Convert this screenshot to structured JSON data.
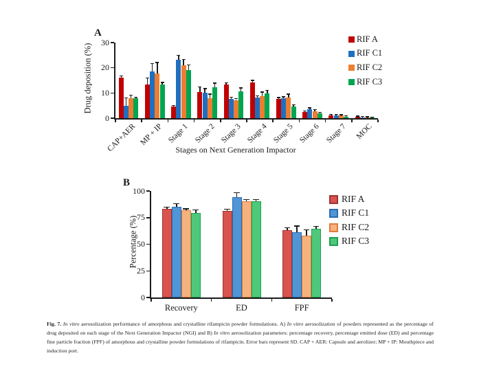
{
  "page": {
    "background": "#ffffff",
    "figure_id": "Fig. 7"
  },
  "chart_data": [
    {
      "id": "A",
      "type": "bar",
      "panel_label": "A",
      "title": "",
      "xlabel": "Stages on Next Generation Impactor",
      "ylabel": "Drug deposition (%)",
      "ylim": [
        0,
        30
      ],
      "yticks": [
        0,
        10,
        20,
        30
      ],
      "grid": false,
      "legend_position": "top-right",
      "error_bars": "SD, upward with caps",
      "categories": [
        "CAP+AER",
        "MP + IP",
        "Stage 1",
        "Stage 2",
        "Stage 3",
        "Stage 4",
        "Stage 5",
        "Stage 6",
        "Stage 7",
        "MOC"
      ],
      "series": [
        {
          "name": "RIF A",
          "fill": "#C00000",
          "stroke": "#C00000",
          "values": [
            16.0,
            13.4,
            4.6,
            10.4,
            13.4,
            14.3,
            7.7,
            2.4,
            1.2,
            0.5
          ],
          "errors": [
            0.6,
            2.3,
            0.3,
            1.8,
            0.4,
            0.5,
            0.3,
            0.2,
            0.15,
            0.1
          ]
        },
        {
          "name": "RIF C1",
          "fill": "#1F6FC0",
          "stroke": "#1F6FC0",
          "values": [
            4.8,
            18.6,
            23.3,
            10.1,
            7.7,
            8.3,
            7.9,
            3.5,
            1.2,
            0.4
          ],
          "errors": [
            3.0,
            2.9,
            1.5,
            1.4,
            0.5,
            0.4,
            0.4,
            0.4,
            0.15,
            0.1
          ]
        },
        {
          "name": "RIF C2",
          "fill": "#ED7D31",
          "stroke": "#ED7D31",
          "values": [
            7.9,
            17.8,
            21.1,
            7.8,
            7.2,
            8.8,
            8.2,
            2.8,
            1.0,
            0.3
          ],
          "errors": [
            1.1,
            4.1,
            2.1,
            1.6,
            0.3,
            1.4,
            1.2,
            0.5,
            0.15,
            0.1
          ]
        },
        {
          "name": "RIF C3",
          "fill": "#00A550",
          "stroke": "#00A550",
          "values": [
            7.8,
            13.3,
            19.0,
            12.2,
            10.6,
            9.8,
            4.7,
            2.0,
            0.6,
            0.25
          ],
          "errors": [
            0.3,
            0.7,
            2.0,
            1.5,
            1.2,
            1.0,
            0.4,
            0.2,
            0.1,
            0.05
          ]
        }
      ]
    },
    {
      "id": "B",
      "type": "bar",
      "panel_label": "B",
      "title": "",
      "xlabel": "",
      "ylabel": "Percentage (%)",
      "ylim": [
        0,
        100
      ],
      "yticks": [
        0,
        25,
        50,
        75,
        100
      ],
      "grid": false,
      "legend_position": "right",
      "error_bars": "SD, upward with caps",
      "categories": [
        "Recovery",
        "ED",
        "FPF"
      ],
      "series": [
        {
          "name": "RIF A",
          "fill": "#D9534F",
          "stroke": "#9E3432",
          "values": [
            83.3,
            81.4,
            63.0
          ],
          "errors": [
            1.0,
            1.2,
            2.0
          ]
        },
        {
          "name": "RIF C1",
          "fill": "#5095D5",
          "stroke": "#2A6DB0",
          "values": [
            85.0,
            94.5,
            61.3
          ],
          "errors": [
            2.8,
            3.3,
            5.3
          ]
        },
        {
          "name": "RIF C2",
          "fill": "#F5B27F",
          "stroke": "#E07B39",
          "values": [
            81.8,
            90.3,
            58.0
          ],
          "errors": [
            1.0,
            1.3,
            5.0
          ]
        },
        {
          "name": "RIF C3",
          "fill": "#4EC97B",
          "stroke": "#1E9E50",
          "values": [
            79.5,
            90.6,
            64.3
          ],
          "errors": [
            2.5,
            0.8,
            2.2
          ]
        }
      ]
    }
  ],
  "caption": {
    "segments": [
      {
        "text": "Fig. 7.",
        "bold": true
      },
      {
        "text": " "
      },
      {
        "text": "In vitro",
        "italic": true
      },
      {
        "text": " aerosolization performance of amorphous and crystalline rifampicin powder formulations. A) "
      },
      {
        "text": "In vitro",
        "italic": true
      },
      {
        "text": " aerosolization of powders represented as the percentage of drug deposited on each stage of the Next Generation Impactor (NGI) and B) "
      },
      {
        "text": "In vitro",
        "italic": true
      },
      {
        "text": " aerosolization parameters: percentage recovery, percentage emitted dose (ED) and percentage fine particle fraction (FPF) of amorphous and crystalline powder formulations of rifampicin. Error bars represent SD. CAP + AER: Capsule and aerolizer; MP + IP: Mouthpiece and induction port."
      }
    ]
  }
}
